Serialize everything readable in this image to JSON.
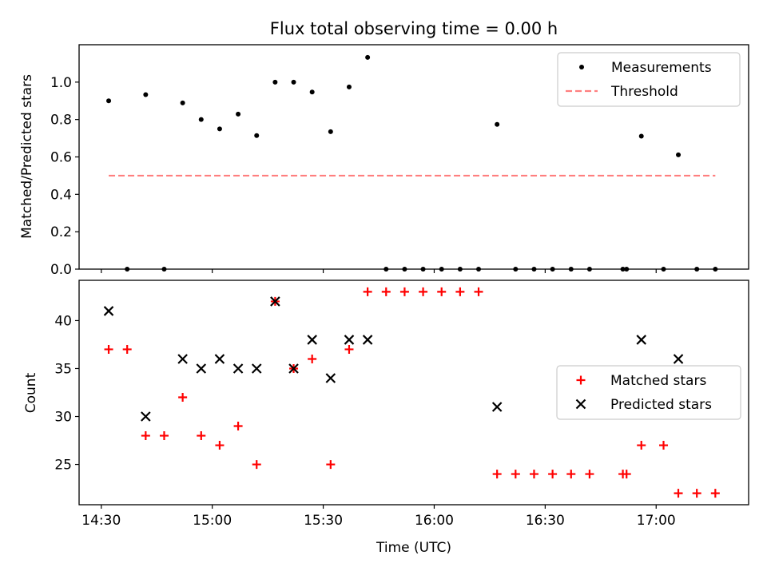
{
  "figure": {
    "title": "Flux total observing time = 0.00 h",
    "xlabel": "Time (UTC)",
    "x_tick_labels": [
      "14:30",
      "15:00",
      "15:30",
      "16:00",
      "16:30",
      "17:00"
    ]
  },
  "chart_data": [
    {
      "type": "scatter",
      "ylabel": "Matched/Predicted stars",
      "ylim": [
        0,
        1.2
      ],
      "xlim": [
        "14:24",
        "17:25"
      ],
      "x_ticks": [
        "14:30",
        "15:00",
        "15:30",
        "16:00",
        "16:30",
        "17:00"
      ],
      "y_ticks": [
        0.0,
        0.2,
        0.4,
        0.6,
        0.8,
        1.0
      ],
      "y_tick_labels": [
        "0.0",
        "0.2",
        "0.4",
        "0.6",
        "0.8",
        "1.0"
      ],
      "legend": {
        "position": "top-right",
        "entries": [
          {
            "label": "Measurements",
            "marker": "dot",
            "color": "#000000"
          },
          {
            "label": "Threshold",
            "marker": "dashed-line",
            "color": "#ff7f7f"
          }
        ]
      },
      "series": [
        {
          "name": "Measurements",
          "marker": "dot",
          "color": "#000000",
          "points": [
            {
              "x": "14:32",
              "y": 0.9
            },
            {
              "x": "14:37",
              "y": 0.0
            },
            {
              "x": "14:42",
              "y": 0.933
            },
            {
              "x": "14:47",
              "y": 0.0
            },
            {
              "x": "14:52",
              "y": 0.889
            },
            {
              "x": "14:57",
              "y": 0.8
            },
            {
              "x": "15:02",
              "y": 0.75
            },
            {
              "x": "15:07",
              "y": 0.829
            },
            {
              "x": "15:12",
              "y": 0.714
            },
            {
              "x": "15:17",
              "y": 1.0
            },
            {
              "x": "15:22",
              "y": 1.0
            },
            {
              "x": "15:27",
              "y": 0.947
            },
            {
              "x": "15:32",
              "y": 0.735
            },
            {
              "x": "15:37",
              "y": 0.974
            },
            {
              "x": "15:42",
              "y": 1.132
            },
            {
              "x": "15:47",
              "y": 0.0
            },
            {
              "x": "15:52",
              "y": 0.0
            },
            {
              "x": "15:57",
              "y": 0.0
            },
            {
              "x": "16:02",
              "y": 0.0
            },
            {
              "x": "16:07",
              "y": 0.0
            },
            {
              "x": "16:12",
              "y": 0.0
            },
            {
              "x": "16:17",
              "y": 0.774
            },
            {
              "x": "16:22",
              "y": 0.0
            },
            {
              "x": "16:27",
              "y": 0.0
            },
            {
              "x": "16:32",
              "y": 0.0
            },
            {
              "x": "16:37",
              "y": 0.0
            },
            {
              "x": "16:42",
              "y": 0.0
            },
            {
              "x": "16:51",
              "y": 0.0
            },
            {
              "x": "16:52",
              "y": 0.0
            },
            {
              "x": "16:56",
              "y": 0.711
            },
            {
              "x": "17:02",
              "y": 0.0
            },
            {
              "x": "17:06",
              "y": 0.611
            },
            {
              "x": "17:11",
              "y": 0.0
            },
            {
              "x": "17:16",
              "y": 0.0
            }
          ]
        },
        {
          "name": "Threshold",
          "marker": "dashed-line",
          "color": "#ff7f7f",
          "points": [
            {
              "x": "14:32",
              "y": 0.5
            },
            {
              "x": "17:16",
              "y": 0.5
            }
          ]
        }
      ]
    },
    {
      "type": "scatter",
      "ylabel": "Count",
      "ylim": [
        20.8,
        44.2
      ],
      "xlim": [
        "14:24",
        "17:25"
      ],
      "x_ticks": [
        "14:30",
        "15:00",
        "15:30",
        "16:00",
        "16:30",
        "17:00"
      ],
      "y_ticks": [
        25,
        30,
        35,
        40
      ],
      "y_tick_labels": [
        "25",
        "30",
        "35",
        "40"
      ],
      "legend": {
        "position": "center-right",
        "entries": [
          {
            "label": "Matched stars",
            "marker": "plus",
            "color": "#ff0000"
          },
          {
            "label": "Predicted stars",
            "marker": "x",
            "color": "#000000"
          }
        ]
      },
      "series": [
        {
          "name": "Matched stars",
          "marker": "plus",
          "color": "#ff0000",
          "points": [
            {
              "x": "14:32",
              "y": 37
            },
            {
              "x": "14:37",
              "y": 37
            },
            {
              "x": "14:42",
              "y": 28
            },
            {
              "x": "14:47",
              "y": 28
            },
            {
              "x": "14:52",
              "y": 32
            },
            {
              "x": "14:57",
              "y": 28
            },
            {
              "x": "15:02",
              "y": 27
            },
            {
              "x": "15:07",
              "y": 29
            },
            {
              "x": "15:12",
              "y": 25
            },
            {
              "x": "15:17",
              "y": 42
            },
            {
              "x": "15:22",
              "y": 35
            },
            {
              "x": "15:27",
              "y": 36
            },
            {
              "x": "15:32",
              "y": 25
            },
            {
              "x": "15:37",
              "y": 37
            },
            {
              "x": "15:42",
              "y": 43
            },
            {
              "x": "15:47",
              "y": 43
            },
            {
              "x": "15:52",
              "y": 43
            },
            {
              "x": "15:57",
              "y": 43
            },
            {
              "x": "16:02",
              "y": 43
            },
            {
              "x": "16:07",
              "y": 43
            },
            {
              "x": "16:12",
              "y": 43
            },
            {
              "x": "16:17",
              "y": 24
            },
            {
              "x": "16:22",
              "y": 24
            },
            {
              "x": "16:27",
              "y": 24
            },
            {
              "x": "16:32",
              "y": 24
            },
            {
              "x": "16:37",
              "y": 24
            },
            {
              "x": "16:42",
              "y": 24
            },
            {
              "x": "16:51",
              "y": 24
            },
            {
              "x": "16:52",
              "y": 24
            },
            {
              "x": "16:56",
              "y": 27
            },
            {
              "x": "17:02",
              "y": 27
            },
            {
              "x": "17:06",
              "y": 22
            },
            {
              "x": "17:11",
              "y": 22
            },
            {
              "x": "17:16",
              "y": 22
            }
          ]
        },
        {
          "name": "Predicted stars",
          "marker": "x",
          "color": "#000000",
          "points": [
            {
              "x": "14:32",
              "y": 41
            },
            {
              "x": "14:42",
              "y": 30
            },
            {
              "x": "14:52",
              "y": 36
            },
            {
              "x": "14:57",
              "y": 35
            },
            {
              "x": "15:02",
              "y": 36
            },
            {
              "x": "15:07",
              "y": 35
            },
            {
              "x": "15:12",
              "y": 35
            },
            {
              "x": "15:17",
              "y": 42
            },
            {
              "x": "15:22",
              "y": 35
            },
            {
              "x": "15:27",
              "y": 38
            },
            {
              "x": "15:32",
              "y": 34
            },
            {
              "x": "15:37",
              "y": 38
            },
            {
              "x": "15:42",
              "y": 38
            },
            {
              "x": "16:17",
              "y": 31
            },
            {
              "x": "16:56",
              "y": 38
            },
            {
              "x": "17:06",
              "y": 36
            }
          ]
        }
      ]
    }
  ]
}
